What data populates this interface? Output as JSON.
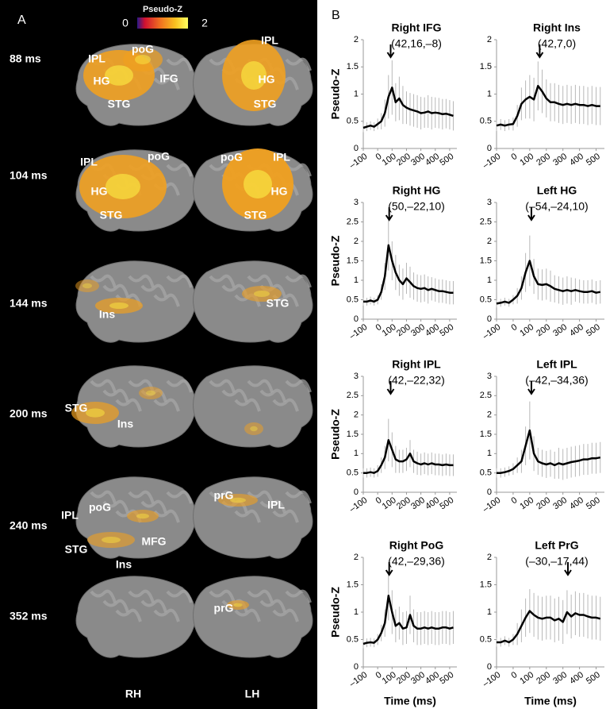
{
  "panel_a": {
    "letter": "A",
    "colorbar": {
      "title": "Pseudo-Z",
      "min": 0,
      "max": 2
    },
    "rows": [
      {
        "time": "88  ms",
        "rh_labels": [
          "IPL",
          "poG",
          "IFG",
          "HG",
          "STG"
        ],
        "lh_labels": [
          "IPL",
          "HG",
          "STG"
        ]
      },
      {
        "time": "104 ms",
        "rh_labels": [
          "IPL",
          "poG",
          "HG",
          "STG"
        ],
        "lh_labels": [
          "poG",
          "IPL",
          "HG",
          "STG"
        ]
      },
      {
        "time": "144 ms",
        "rh_labels": [
          "Ins"
        ],
        "lh_labels": [
          "STG"
        ]
      },
      {
        "time": "200 ms",
        "rh_labels": [
          "STG",
          "Ins"
        ],
        "lh_labels": []
      },
      {
        "time": "240 ms",
        "rh_labels": [
          "IPL",
          "poG",
          "STG",
          "MFG",
          "Ins"
        ],
        "lh_labels": [
          "prG",
          "IPL"
        ]
      },
      {
        "time": "352 ms",
        "rh_labels": [],
        "lh_labels": [
          "prG"
        ]
      }
    ],
    "hemispheres": [
      "RH",
      "LH"
    ]
  },
  "panel_b": {
    "letter": "B"
  },
  "chart_data": [
    {
      "type": "line",
      "title": "Right IFG",
      "subtitle": "(42,16,–8)",
      "ylabel": "Pseudo-Z",
      "x": [
        -100,
        -75,
        -50,
        -25,
        0,
        25,
        50,
        75,
        100,
        125,
        150,
        175,
        200,
        225,
        250,
        275,
        300,
        325,
        350,
        375,
        400,
        425,
        450,
        475,
        500,
        525
      ],
      "values": [
        0.38,
        0.4,
        0.42,
        0.4,
        0.45,
        0.5,
        0.65,
        0.95,
        1.12,
        0.85,
        0.92,
        0.8,
        0.75,
        0.72,
        0.7,
        0.68,
        0.65,
        0.66,
        0.68,
        0.65,
        0.66,
        0.65,
        0.63,
        0.64,
        0.62,
        0.6
      ],
      "errors": [
        0.08,
        0.08,
        0.08,
        0.08,
        0.1,
        0.15,
        0.25,
        0.4,
        0.5,
        0.35,
        0.4,
        0.35,
        0.3,
        0.3,
        0.3,
        0.3,
        0.3,
        0.28,
        0.3,
        0.3,
        0.28,
        0.28,
        0.28,
        0.27,
        0.27,
        0.27
      ],
      "color": "#000000",
      "error_color": "#b8b8b8",
      "arrow_x": 90,
      "xlim": [
        -100,
        550
      ],
      "ylim": [
        0,
        2
      ],
      "xticks": [
        {
          "value": -100,
          "label": "–100"
        },
        0,
        100,
        200,
        300,
        400,
        500
      ],
      "yticks": [
        0,
        0.5,
        1,
        1.5,
        2
      ]
    },
    {
      "type": "line",
      "title": "Right Ins",
      "subtitle": "(42,7,0)",
      "x": [
        -100,
        -75,
        -50,
        -25,
        0,
        25,
        50,
        75,
        100,
        125,
        150,
        175,
        200,
        225,
        250,
        275,
        300,
        325,
        350,
        375,
        400,
        425,
        450,
        475,
        500,
        525
      ],
      "values": [
        0.42,
        0.44,
        0.42,
        0.44,
        0.45,
        0.6,
        0.82,
        0.9,
        0.95,
        0.9,
        1.15,
        1.05,
        0.92,
        0.85,
        0.85,
        0.82,
        0.8,
        0.82,
        0.8,
        0.82,
        0.8,
        0.8,
        0.78,
        0.8,
        0.78,
        0.78
      ],
      "errors": [
        0.1,
        0.1,
        0.1,
        0.1,
        0.12,
        0.2,
        0.3,
        0.35,
        0.4,
        0.4,
        0.45,
        0.4,
        0.35,
        0.35,
        0.35,
        0.35,
        0.35,
        0.35,
        0.35,
        0.35,
        0.35,
        0.35,
        0.35,
        0.35,
        0.35,
        0.35
      ],
      "color": "#000000",
      "error_color": "#b8b8b8",
      "arrow_x": 160,
      "xlim": [
        -100,
        550
      ],
      "ylim": [
        0,
        2
      ],
      "xticks": [
        {
          "value": -100,
          "label": "–100"
        },
        0,
        100,
        200,
        300,
        400,
        500
      ],
      "yticks": [
        0,
        0.5,
        1,
        1.5,
        2
      ]
    },
    {
      "type": "line",
      "title": "Right HG",
      "subtitle": "(50,–22,10)",
      "ylabel": "Pseudo-Z",
      "x": [
        -100,
        -75,
        -50,
        -25,
        0,
        25,
        50,
        75,
        100,
        125,
        150,
        175,
        200,
        225,
        250,
        275,
        300,
        325,
        350,
        375,
        400,
        425,
        450,
        475,
        500,
        525
      ],
      "values": [
        0.45,
        0.45,
        0.48,
        0.45,
        0.5,
        0.7,
        1.1,
        1.9,
        1.5,
        1.2,
        1.0,
        0.9,
        1.05,
        0.95,
        0.85,
        0.8,
        0.78,
        0.8,
        0.75,
        0.78,
        0.75,
        0.72,
        0.72,
        0.7,
        0.68,
        0.68
      ],
      "errors": [
        0.1,
        0.1,
        0.1,
        0.1,
        0.12,
        0.2,
        0.35,
        0.65,
        0.5,
        0.45,
        0.4,
        0.4,
        0.4,
        0.4,
        0.35,
        0.35,
        0.35,
        0.35,
        0.35,
        0.3,
        0.3,
        0.3,
        0.3,
        0.3,
        0.3,
        0.3
      ],
      "color": "#000000",
      "error_color": "#b8b8b8",
      "arrow_x": 80,
      "xlim": [
        -100,
        550
      ],
      "ylim": [
        0,
        3
      ],
      "xticks": [
        {
          "value": -100,
          "label": "–100"
        },
        0,
        100,
        200,
        300,
        400,
        500
      ],
      "yticks": [
        0,
        0.5,
        1,
        1.5,
        2,
        2.5,
        3
      ]
    },
    {
      "type": "line",
      "title": "Left HG",
      "subtitle": "(–54,–24,10)",
      "x": [
        -100,
        -75,
        -50,
        -25,
        0,
        25,
        50,
        75,
        100,
        125,
        150,
        175,
        200,
        225,
        250,
        275,
        300,
        325,
        350,
        375,
        400,
        425,
        450,
        475,
        500,
        525
      ],
      "values": [
        0.4,
        0.42,
        0.45,
        0.42,
        0.5,
        0.6,
        0.8,
        1.2,
        1.5,
        1.1,
        0.9,
        0.88,
        0.9,
        0.85,
        0.78,
        0.75,
        0.72,
        0.75,
        0.72,
        0.75,
        0.72,
        0.7,
        0.7,
        0.72,
        0.68,
        0.7
      ],
      "errors": [
        0.1,
        0.1,
        0.1,
        0.1,
        0.12,
        0.2,
        0.3,
        0.5,
        0.65,
        0.45,
        0.4,
        0.4,
        0.4,
        0.4,
        0.35,
        0.35,
        0.35,
        0.35,
        0.35,
        0.3,
        0.3,
        0.3,
        0.3,
        0.3,
        0.3,
        0.3
      ],
      "color": "#000000",
      "error_color": "#b8b8b8",
      "arrow_x": 110,
      "xlim": [
        -100,
        550
      ],
      "ylim": [
        0,
        3
      ],
      "xticks": [
        {
          "value": -100,
          "label": "–100"
        },
        0,
        100,
        200,
        300,
        400,
        500
      ],
      "yticks": [
        0,
        0.5,
        1,
        1.5,
        2,
        2.5,
        3
      ]
    },
    {
      "type": "line",
      "title": "Right IPL",
      "subtitle": "(42,–22,32)",
      "ylabel": "Pseudo-Z",
      "x": [
        -100,
        -75,
        -50,
        -25,
        0,
        25,
        50,
        75,
        100,
        125,
        150,
        175,
        200,
        225,
        250,
        275,
        300,
        325,
        350,
        375,
        400,
        425,
        450,
        475,
        500,
        525
      ],
      "values": [
        0.5,
        0.5,
        0.52,
        0.5,
        0.55,
        0.7,
        0.9,
        1.35,
        1.1,
        0.85,
        0.8,
        0.8,
        0.85,
        1.0,
        0.8,
        0.75,
        0.72,
        0.75,
        0.72,
        0.75,
        0.72,
        0.72,
        0.7,
        0.72,
        0.7,
        0.7
      ],
      "errors": [
        0.12,
        0.12,
        0.12,
        0.12,
        0.15,
        0.2,
        0.3,
        0.55,
        0.45,
        0.35,
        0.3,
        0.3,
        0.3,
        0.35,
        0.3,
        0.3,
        0.28,
        0.28,
        0.28,
        0.28,
        0.28,
        0.28,
        0.28,
        0.28,
        0.28,
        0.28
      ],
      "color": "#000000",
      "error_color": "#b8b8b8",
      "arrow_x": 90,
      "xlim": [
        -100,
        550
      ],
      "ylim": [
        0,
        3
      ],
      "xticks": [
        {
          "value": -100,
          "label": "–100"
        },
        0,
        100,
        200,
        300,
        400,
        500
      ],
      "yticks": [
        0,
        0.5,
        1,
        1.5,
        2,
        2.5,
        3
      ]
    },
    {
      "type": "line",
      "title": "Left IPL",
      "subtitle": "(–42,–34,36)",
      "x": [
        -100,
        -75,
        -50,
        -25,
        0,
        25,
        50,
        75,
        100,
        125,
        150,
        175,
        200,
        225,
        250,
        275,
        300,
        325,
        350,
        375,
        400,
        425,
        450,
        475,
        500,
        525
      ],
      "values": [
        0.5,
        0.5,
        0.52,
        0.55,
        0.6,
        0.7,
        0.8,
        1.2,
        1.6,
        1.0,
        0.8,
        0.75,
        0.72,
        0.75,
        0.7,
        0.75,
        0.72,
        0.75,
        0.78,
        0.8,
        0.82,
        0.85,
        0.85,
        0.88,
        0.88,
        0.9
      ],
      "errors": [
        0.12,
        0.12,
        0.12,
        0.12,
        0.15,
        0.2,
        0.3,
        0.5,
        0.75,
        0.45,
        0.35,
        0.35,
        0.35,
        0.35,
        0.35,
        0.4,
        0.4,
        0.4,
        0.4,
        0.4,
        0.4,
        0.4,
        0.4,
        0.4,
        0.4,
        0.4
      ],
      "color": "#000000",
      "error_color": "#b8b8b8",
      "arrow_x": 110,
      "xlim": [
        -100,
        550
      ],
      "ylim": [
        0,
        3
      ],
      "xticks": [
        {
          "value": -100,
          "label": "–100"
        },
        0,
        100,
        200,
        300,
        400,
        500
      ],
      "yticks": [
        0,
        0.5,
        1,
        1.5,
        2,
        2.5,
        3
      ]
    },
    {
      "type": "line",
      "title": "Right PoG",
      "subtitle": "(42,–29,36)",
      "ylabel": "Pseudo-Z",
      "xlabel": "Time (ms)",
      "x": [
        -100,
        -75,
        -50,
        -25,
        0,
        25,
        50,
        75,
        100,
        125,
        150,
        175,
        200,
        225,
        250,
        275,
        300,
        325,
        350,
        375,
        400,
        425,
        450,
        475,
        500,
        525
      ],
      "values": [
        0.42,
        0.44,
        0.45,
        0.44,
        0.5,
        0.62,
        0.8,
        1.3,
        1.0,
        0.75,
        0.8,
        0.7,
        0.72,
        0.95,
        0.75,
        0.7,
        0.7,
        0.72,
        0.7,
        0.72,
        0.7,
        0.7,
        0.72,
        0.72,
        0.7,
        0.72
      ],
      "errors": [
        0.08,
        0.08,
        0.08,
        0.08,
        0.1,
        0.15,
        0.25,
        0.45,
        0.4,
        0.3,
        0.3,
        0.3,
        0.3,
        0.35,
        0.3,
        0.3,
        0.3,
        0.3,
        0.3,
        0.3,
        0.3,
        0.3,
        0.3,
        0.3,
        0.3,
        0.3
      ],
      "color": "#000000",
      "error_color": "#b8b8b8",
      "arrow_x": 80,
      "xlim": [
        -100,
        550
      ],
      "ylim": [
        0,
        2
      ],
      "xticks": [
        {
          "value": -100,
          "label": "–100"
        },
        0,
        100,
        200,
        300,
        400,
        500
      ],
      "yticks": [
        0,
        0.5,
        1,
        1.5,
        2
      ]
    },
    {
      "type": "line",
      "title": "Left PrG",
      "subtitle": "(–30,–17,44)",
      "xlabel": "Time (ms)",
      "x": [
        -100,
        -75,
        -50,
        -25,
        0,
        25,
        50,
        75,
        100,
        125,
        150,
        175,
        200,
        225,
        250,
        275,
        300,
        325,
        350,
        375,
        400,
        425,
        450,
        475,
        500,
        525
      ],
      "values": [
        0.45,
        0.45,
        0.48,
        0.45,
        0.5,
        0.6,
        0.75,
        0.9,
        1.02,
        0.95,
        0.9,
        0.88,
        0.9,
        0.9,
        0.85,
        0.88,
        0.82,
        1.0,
        0.92,
        0.98,
        0.95,
        0.95,
        0.92,
        0.9,
        0.9,
        0.88
      ],
      "errors": [
        0.08,
        0.08,
        0.08,
        0.08,
        0.1,
        0.2,
        0.3,
        0.35,
        0.4,
        0.4,
        0.4,
        0.4,
        0.4,
        0.4,
        0.4,
        0.4,
        0.4,
        0.4,
        0.4,
        0.4,
        0.4,
        0.4,
        0.4,
        0.4,
        0.4,
        0.4
      ],
      "color": "#000000",
      "error_color": "#b8b8b8",
      "arrow_x": 330,
      "xlim": [
        -100,
        550
      ],
      "ylim": [
        0,
        2
      ],
      "xticks": [
        {
          "value": -100,
          "label": "–100"
        },
        0,
        100,
        200,
        300,
        400,
        500
      ],
      "yticks": [
        0,
        0.5,
        1,
        1.5,
        2
      ]
    }
  ]
}
